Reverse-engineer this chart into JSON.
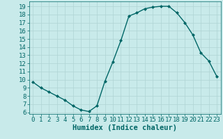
{
  "x": [
    0,
    1,
    2,
    3,
    4,
    5,
    6,
    7,
    8,
    9,
    10,
    11,
    12,
    13,
    14,
    15,
    16,
    17,
    18,
    19,
    20,
    21,
    22,
    23
  ],
  "y": [
    9.7,
    9.0,
    8.5,
    8.0,
    7.5,
    6.8,
    6.3,
    6.1,
    6.8,
    9.8,
    12.2,
    14.8,
    17.8,
    18.2,
    18.7,
    18.9,
    19.0,
    19.0,
    18.2,
    17.0,
    15.5,
    13.3,
    12.3,
    10.4
  ],
  "line_color": "#006666",
  "marker": "D",
  "marker_size": 2.0,
  "bg_color": "#c8eaea",
  "grid_color": "#afd4d4",
  "xlabel": "Humidex (Indice chaleur)",
  "xlim": [
    -0.5,
    23.5
  ],
  "ylim": [
    5.8,
    19.6
  ],
  "xticks": [
    0,
    1,
    2,
    3,
    4,
    5,
    6,
    7,
    8,
    9,
    10,
    11,
    12,
    13,
    14,
    15,
    16,
    17,
    18,
    19,
    20,
    21,
    22,
    23
  ],
  "yticks": [
    6,
    7,
    8,
    9,
    10,
    11,
    12,
    13,
    14,
    15,
    16,
    17,
    18,
    19
  ],
  "xlabel_fontsize": 7.5,
  "tick_fontsize": 6.5,
  "line_width": 1.0
}
